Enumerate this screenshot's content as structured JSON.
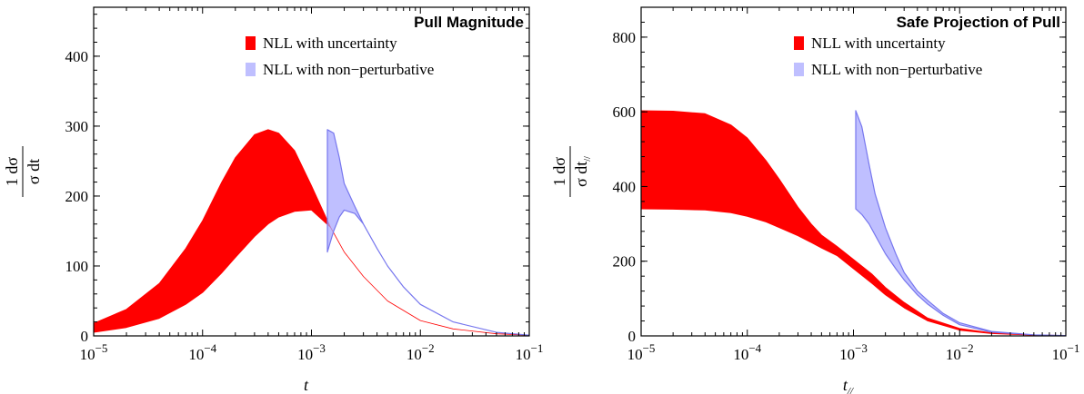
{
  "chart_data": [
    {
      "type": "area",
      "title": "Pull Magnitude",
      "xlabel": "t",
      "ylabel_numerator": "1  dσ",
      "ylabel_denominator": "σ  dt",
      "x_scale": "log",
      "xlim": [
        1e-05,
        0.1
      ],
      "ylim": [
        0,
        470
      ],
      "x_ticks": [
        {
          "base": "10",
          "exp": "−5"
        },
        {
          "base": "10",
          "exp": "−4"
        },
        {
          "base": "10",
          "exp": "−3"
        },
        {
          "base": "10",
          "exp": "−2"
        },
        {
          "base": "10",
          "exp": "−1"
        }
      ],
      "y_ticks": [
        "0",
        "100",
        "200",
        "300",
        "400"
      ],
      "y_tick_values": [
        0,
        100,
        200,
        300,
        400
      ],
      "legend_position": "top-right",
      "series": [
        {
          "name": "NLL with uncertainty",
          "color": "#ff0000",
          "x": [
            1e-05,
            2e-05,
            4e-05,
            7e-05,
            0.0001,
            0.00015,
            0.0002,
            0.0003,
            0.0004,
            0.0005,
            0.0007,
            0.001,
            0.0015,
            0.002,
            0.003,
            0.005,
            0.01,
            0.02,
            0.05,
            0.1
          ],
          "upper": [
            18,
            38,
            75,
            125,
            165,
            220,
            255,
            288,
            295,
            290,
            265,
            215,
            155,
            120,
            85,
            50,
            22,
            10,
            3,
            1
          ],
          "lower": [
            5,
            12,
            25,
            45,
            62,
            90,
            112,
            142,
            160,
            170,
            178,
            180,
            155,
            120,
            85,
            50,
            22,
            10,
            3,
            1
          ]
        },
        {
          "name": "NLL with non−perturbative",
          "color": "#aaaaff",
          "x": [
            0.0014,
            0.0016,
            0.0018,
            0.002,
            0.0025,
            0.003,
            0.004,
            0.005,
            0.007,
            0.01,
            0.02,
            0.05,
            0.1
          ],
          "upper": [
            295,
            290,
            255,
            218,
            185,
            160,
            125,
            100,
            70,
            45,
            20,
            5,
            1
          ],
          "lower": [
            120,
            150,
            170,
            180,
            175,
            160,
            125,
            100,
            70,
            45,
            20,
            5,
            1
          ]
        }
      ]
    },
    {
      "type": "area",
      "title": "Safe Projection of Pull",
      "xlabel": "t",
      "xlabel_sub": "//",
      "ylabel_numerator": "1  dσ",
      "ylabel_denominator": "σ  dt",
      "ylabel_sub": "//",
      "x_scale": "log",
      "xlim": [
        1e-05,
        0.1
      ],
      "ylim": [
        0,
        880
      ],
      "x_ticks": [
        {
          "base": "10",
          "exp": "−5"
        },
        {
          "base": "10",
          "exp": "−4"
        },
        {
          "base": "10",
          "exp": "−3"
        },
        {
          "base": "10",
          "exp": "−2"
        },
        {
          "base": "10",
          "exp": "−1"
        }
      ],
      "y_ticks": [
        "0",
        "200",
        "400",
        "600",
        "800"
      ],
      "y_tick_values": [
        0,
        200,
        400,
        600,
        800
      ],
      "legend_position": "top-right",
      "series": [
        {
          "name": "NLL with uncertainty",
          "color": "#ff0000",
          "x": [
            1e-05,
            2e-05,
            4e-05,
            7e-05,
            0.0001,
            0.00015,
            0.0002,
            0.0003,
            0.0004,
            0.0005,
            0.0007,
            0.001,
            0.0015,
            0.002,
            0.003,
            0.005,
            0.01,
            0.02,
            0.05,
            0.1
          ],
          "upper": [
            603,
            602,
            595,
            565,
            530,
            470,
            420,
            345,
            300,
            270,
            240,
            205,
            165,
            130,
            90,
            48,
            20,
            8,
            3,
            1
          ],
          "lower": [
            340,
            339,
            337,
            330,
            320,
            305,
            290,
            268,
            250,
            235,
            215,
            180,
            140,
            110,
            75,
            40,
            15,
            6,
            2,
            1
          ]
        },
        {
          "name": "NLL with non−perturbative",
          "color": "#aaaaff",
          "x": [
            0.00105,
            0.0012,
            0.0014,
            0.0016,
            0.002,
            0.0025,
            0.003,
            0.004,
            0.005,
            0.007,
            0.01,
            0.02,
            0.05,
            0.1
          ],
          "upper": [
            603,
            560,
            460,
            380,
            290,
            220,
            170,
            120,
            95,
            60,
            35,
            12,
            3,
            1
          ],
          "lower": [
            340,
            325,
            300,
            270,
            220,
            180,
            150,
            110,
            85,
            55,
            30,
            10,
            3,
            1
          ]
        }
      ]
    }
  ]
}
